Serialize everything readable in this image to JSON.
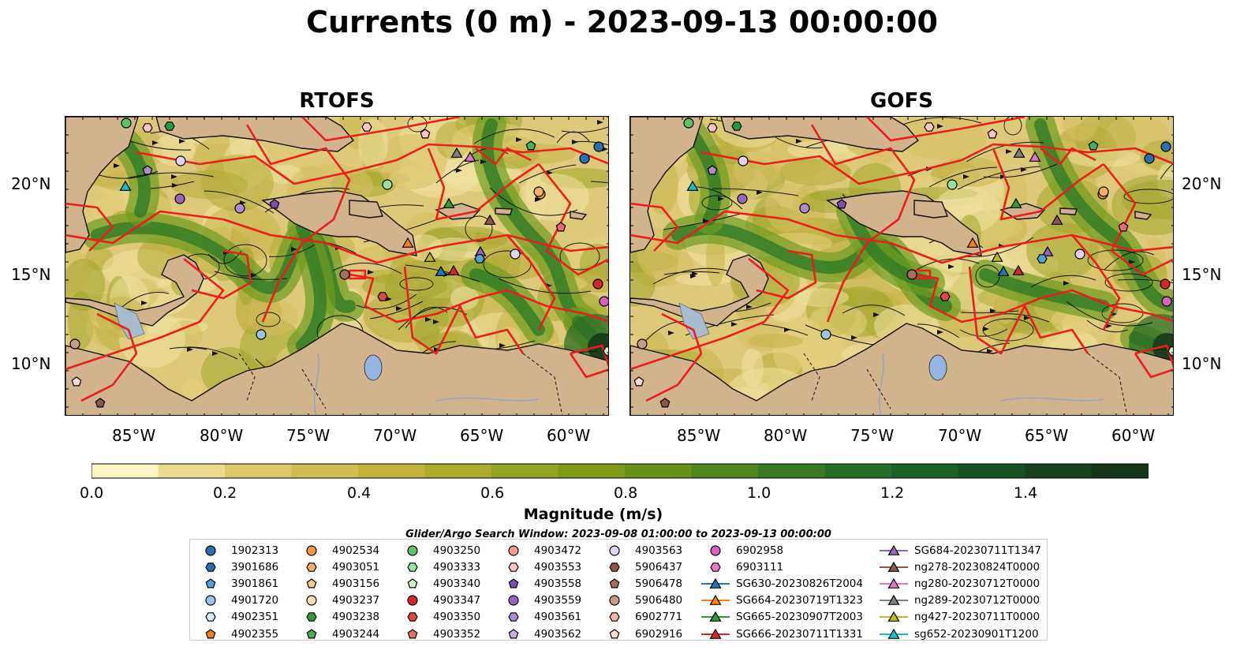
{
  "title": "Currents (0 m) - 2023-09-13 00:00:00",
  "panels": [
    {
      "title": "RTOFS",
      "variant": 0
    },
    {
      "title": "GOFS",
      "variant": 1
    }
  ],
  "lat_labels": [
    "20°N",
    "15°N",
    "10°N"
  ],
  "lon_labels": [
    "85°W",
    "80°W",
    "75°W",
    "70°W",
    "65°W",
    "60°W"
  ],
  "colorbar": {
    "label": "Magnitude (m/s)",
    "ticks": [
      "0.0",
      "0.2",
      "0.4",
      "0.6",
      "0.8",
      "1.0",
      "1.2",
      "1.4"
    ],
    "colors": [
      "#fbf5c3",
      "#ecdc92",
      "#dec76a",
      "#d1bd4f",
      "#c1b33c",
      "#abab2e",
      "#95a322",
      "#7e9a18",
      "#68901a",
      "#4f861f",
      "#3a7a24",
      "#276e27",
      "#1a6128",
      "#175226",
      "#164421",
      "#15361b",
      "#132814"
    ]
  },
  "search_window_text": "Glider/Argo Search Window: 2023-09-08 01:00:00 to 2023-09-13 00:00:00",
  "legend_columns": [
    [
      {
        "label": "1902313",
        "marker": "circle",
        "color": "#2a6fb0"
      },
      {
        "label": "3901686",
        "marker": "hexagon",
        "color": "#2a6fb0"
      },
      {
        "label": "3901861",
        "marker": "pentagon",
        "color": "#5a9fd4"
      },
      {
        "label": "4901720",
        "marker": "circle",
        "color": "#9dc3e6"
      },
      {
        "label": "4902351",
        "marker": "hexagon",
        "color": "#d8e9f7"
      },
      {
        "label": "4902355",
        "marker": "pentagon",
        "color": "#f07d1c"
      }
    ],
    [
      {
        "label": "4902534",
        "marker": "circle",
        "color": "#f39a3e"
      },
      {
        "label": "4903051",
        "marker": "hexagon",
        "color": "#f6ae6a"
      },
      {
        "label": "4903156",
        "marker": "pentagon",
        "color": "#f8c68f"
      },
      {
        "label": "4903237",
        "marker": "circle",
        "color": "#fbdcb7"
      },
      {
        "label": "4903238",
        "marker": "hexagon",
        "color": "#2e9a3a"
      },
      {
        "label": "4903244",
        "marker": "pentagon",
        "color": "#45b24f"
      }
    ],
    [
      {
        "label": "4903250",
        "marker": "circle",
        "color": "#5cc463"
      },
      {
        "label": "4903333",
        "marker": "hexagon",
        "color": "#9be39a"
      },
      {
        "label": "4903340",
        "marker": "pentagon",
        "color": "#cdf2c6"
      },
      {
        "label": "4903347",
        "marker": "circle",
        "color": "#d62728"
      },
      {
        "label": "4903350",
        "marker": "hexagon",
        "color": "#e04848"
      },
      {
        "label": "4903352",
        "marker": "pentagon",
        "color": "#ec6b6b"
      }
    ],
    [
      {
        "label": "4903472",
        "marker": "circle",
        "color": "#f59a9a"
      },
      {
        "label": "4903553",
        "marker": "hexagon",
        "color": "#fcc4c4"
      },
      {
        "label": "4903558",
        "marker": "pentagon",
        "color": "#7b4fb0"
      },
      {
        "label": "4903559",
        "marker": "circle",
        "color": "#9467bd"
      },
      {
        "label": "4903561",
        "marker": "hexagon",
        "color": "#ad8ad1"
      },
      {
        "label": "4903562",
        "marker": "pentagon",
        "color": "#c7afe2"
      }
    ],
    [
      {
        "label": "4903563",
        "marker": "circle",
        "color": "#e1d3f2"
      },
      {
        "label": "5906437",
        "marker": "hexagon",
        "color": "#8c564b"
      },
      {
        "label": "5906478",
        "marker": "pentagon",
        "color": "#a6705f"
      },
      {
        "label": "5906480",
        "marker": "circle",
        "color": "#c49c8c"
      },
      {
        "label": "6902771",
        "marker": "hexagon",
        "color": "#e8b9a8"
      },
      {
        "label": "6902916",
        "marker": "pentagon",
        "color": "#fcdcd0"
      }
    ],
    [
      {
        "label": "6902958",
        "marker": "circle",
        "color": "#d662be"
      },
      {
        "label": "6903111",
        "marker": "hexagon",
        "color": "#e77ccf"
      },
      {
        "label": "SG630-20230826T2004",
        "marker": "triangle",
        "color": "#1f77b4"
      },
      {
        "label": "SG664-20230719T1323",
        "marker": "triangle",
        "color": "#ff7f0e"
      },
      {
        "label": "SG665-20230907T2003",
        "marker": "triangle",
        "color": "#2ca02c"
      },
      {
        "label": "SG666-20230711T1331",
        "marker": "triangle",
        "color": "#d62728"
      }
    ],
    [
      {
        "label": "SG684-20230711T1347",
        "marker": "triangle",
        "color": "#9467bd"
      },
      {
        "label": "ng278-20230824T0000",
        "marker": "triangle",
        "color": "#8c564b"
      },
      {
        "label": "ng280-20230712T0000",
        "marker": "triangle",
        "color": "#e377c2"
      },
      {
        "label": "ng289-20230712T0000",
        "marker": "triangle",
        "color": "#7f7f7f"
      },
      {
        "label": "ng427-20230711T0000",
        "marker": "triangle",
        "color": "#bcbd22"
      },
      {
        "label": "sg652-20230901T1200",
        "marker": "triangle",
        "color": "#17becf"
      }
    ]
  ]
}
